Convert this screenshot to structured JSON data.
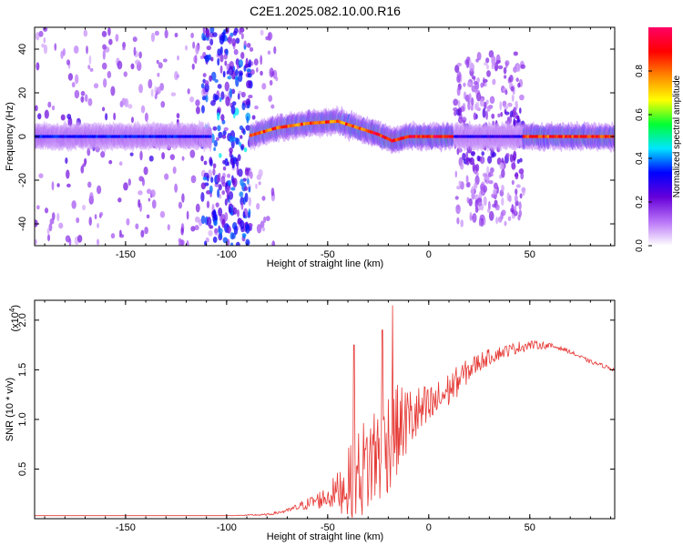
{
  "figure": {
    "title": "C2E1.2025.082.10.00.R16"
  },
  "chart_data": [
    {
      "type": "heatmap",
      "title": "C2E1.2025.082.10.00.R16",
      "xlabel": "Height of straight line (km)",
      "ylabel": "Frequency (Hz)",
      "xlim": [
        -195,
        92
      ],
      "ylim": [
        -50,
        50
      ],
      "xticks": [
        -150,
        -100,
        -50,
        0,
        50
      ],
      "yticks": [
        -40,
        -20,
        0,
        20,
        40
      ],
      "colorbar": {
        "label": "Normalized spectral amplitude",
        "range": [
          0,
          1
        ],
        "ticks": [
          0.0,
          0.2,
          0.4,
          0.6,
          0.8
        ],
        "colormap": [
          "#ffffff",
          "#b873f7",
          "#6600d9",
          "#0000ff",
          "#00e5ff",
          "#00ff33",
          "#ffff00",
          "#ff8800",
          "#ff0000",
          "#ff0066"
        ]
      },
      "ridge": {
        "description_points_x": [
          -195,
          -150,
          -120,
          -110,
          -90,
          -75,
          -60,
          -45,
          -35,
          -25,
          -18,
          -10,
          0,
          12,
          20,
          40,
          50,
          92
        ],
        "description_points_y": [
          0,
          0,
          0,
          0,
          0,
          4,
          6,
          7,
          4,
          1,
          -2,
          0,
          0,
          0,
          0,
          0,
          0,
          0
        ],
        "segments": [
          {
            "x": [
              -195,
              -108
            ],
            "peak_amplitude": 0.35
          },
          {
            "x": [
              -88,
              -28
            ],
            "peak_amplitude": 0.85
          },
          {
            "x": [
              -28,
              12
            ],
            "peak_amplitude": 0.95
          },
          {
            "x": [
              13,
              47
            ],
            "peak_amplitude": 0.3
          },
          {
            "x": [
              47,
              92
            ],
            "peak_amplitude": 0.9
          }
        ],
        "scatter_zones": [
          {
            "x": [
              -195,
              -75
            ],
            "y": [
              -50,
              50
            ],
            "density": "medium"
          },
          {
            "x": [
              -112,
              -88
            ],
            "y": [
              -50,
              50
            ],
            "density": "high"
          },
          {
            "x": [
              13,
              47
            ],
            "y": [
              -40,
              38
            ],
            "density": "medium"
          }
        ]
      }
    },
    {
      "type": "line",
      "xlabel": "Height of straight line (km)",
      "ylabel": "SNR (10 * v/v)",
      "multiplier_label": "(x10",
      "multiplier_exp": "4",
      "multiplier_close": ")",
      "xlim": [
        -195,
        92
      ],
      "ylim": [
        0,
        2.2
      ],
      "xticks": [
        -150,
        -100,
        -50,
        0,
        50
      ],
      "yticks": [
        0.5,
        1.0,
        1.5,
        2.0
      ],
      "color": "#e53935",
      "series": [
        {
          "x": [
            -195,
            -150,
            -100,
            -80,
            -70,
            -60,
            -50,
            -45,
            -40,
            -35,
            -30,
            -25,
            -20,
            -15,
            -10,
            -5,
            0,
            5,
            10,
            15,
            20,
            25,
            30,
            35,
            40,
            45,
            50,
            55,
            60,
            65,
            70,
            75,
            80,
            85,
            92
          ],
          "values": [
            0.03,
            0.03,
            0.03,
            0.04,
            0.08,
            0.15,
            0.22,
            0.28,
            0.35,
            0.45,
            0.55,
            0.68,
            0.8,
            0.9,
            1.0,
            1.05,
            1.1,
            1.2,
            1.3,
            1.4,
            1.5,
            1.58,
            1.63,
            1.67,
            1.7,
            1.73,
            1.75,
            1.75,
            1.74,
            1.72,
            1.68,
            1.63,
            1.58,
            1.55,
            1.5
          ],
          "noise": [
            0.0,
            0.0,
            0.0,
            0.01,
            0.02,
            0.06,
            0.12,
            0.2,
            0.35,
            0.45,
            0.55,
            0.6,
            0.55,
            0.45,
            0.35,
            0.3,
            0.25,
            0.2,
            0.18,
            0.15,
            0.12,
            0.1,
            0.08,
            0.07,
            0.06,
            0.06,
            0.05,
            0.04,
            0.03,
            0.02,
            0.02,
            0.02,
            0.02,
            0.02,
            0.02
          ],
          "peaks": [
            {
              "x": -37,
              "y": 1.75
            },
            {
              "x": -18,
              "y": 2.15
            },
            {
              "x": -23,
              "y": 1.9
            }
          ]
        }
      ]
    }
  ]
}
